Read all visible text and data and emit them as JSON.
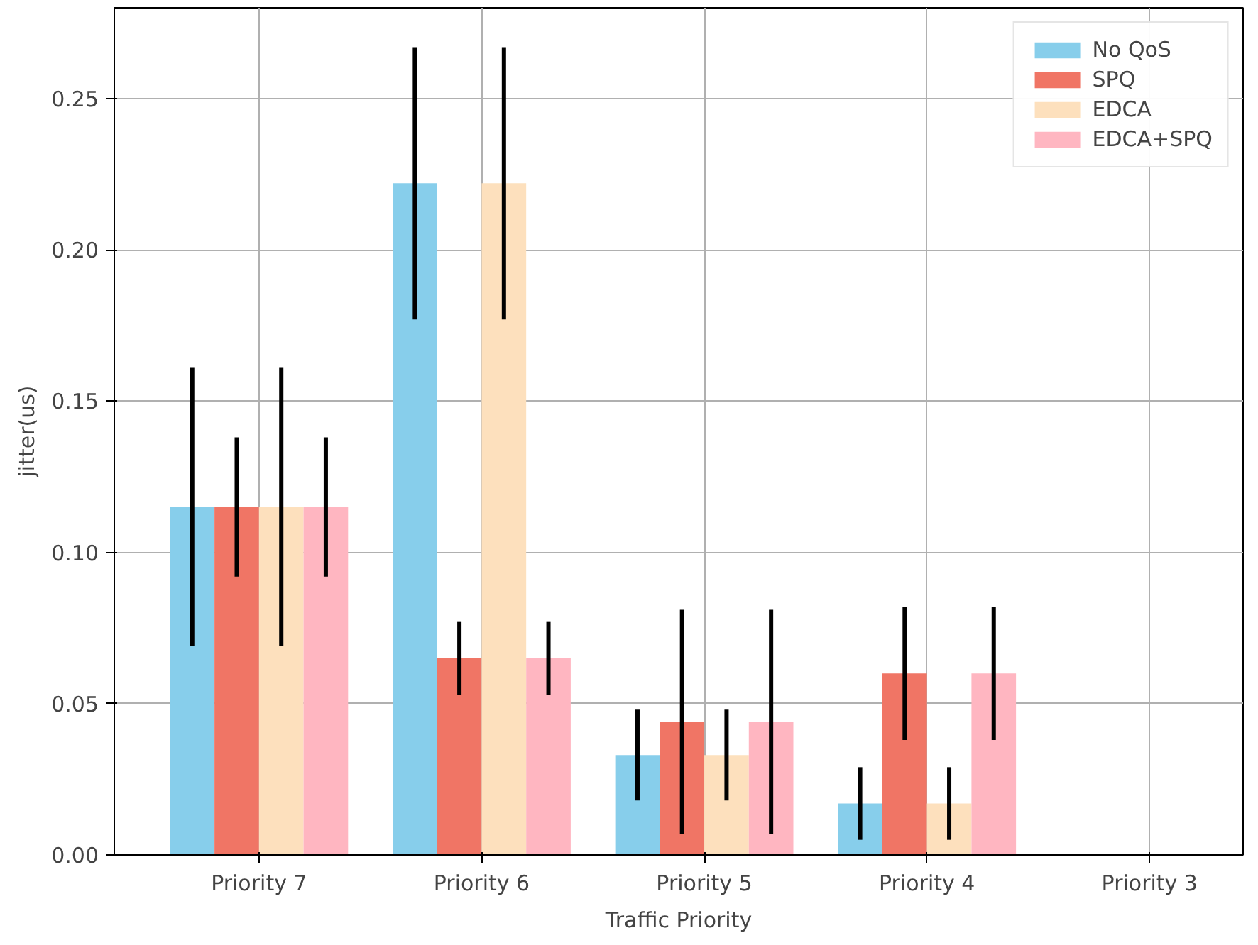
{
  "chart_data": {
    "type": "bar",
    "xlabel": "Traffic Priority",
    "ylabel": "jitter(us)",
    "categories": [
      "Priority 7",
      "Priority 6",
      "Priority 5",
      "Priority 4",
      "Priority 3"
    ],
    "series": [
      {
        "name": "No QoS",
        "color": "#87ceeb",
        "values": [
          0.115,
          0.222,
          0.033,
          0.017,
          null
        ],
        "errors": [
          0.046,
          0.045,
          0.015,
          0.012,
          null
        ]
      },
      {
        "name": "SPQ",
        "color": "#f07565",
        "values": [
          0.115,
          0.065,
          0.044,
          0.06,
          null
        ],
        "errors": [
          0.023,
          0.012,
          0.037,
          0.022,
          null
        ]
      },
      {
        "name": "EDCA",
        "color": "#fde0bd",
        "values": [
          0.115,
          0.222,
          0.033,
          0.017,
          null
        ],
        "errors": [
          0.046,
          0.045,
          0.015,
          0.012,
          null
        ]
      },
      {
        "name": "EDCA+SPQ",
        "color": "#ffb6c1",
        "values": [
          0.115,
          0.065,
          0.044,
          0.06,
          null
        ],
        "errors": [
          0.023,
          0.012,
          0.037,
          0.022,
          null
        ]
      }
    ],
    "ylim": [
      0,
      0.28
    ],
    "yticks": [
      {
        "value": 0,
        "label": "0.00"
      },
      {
        "value": 0.05,
        "label": "0.05"
      },
      {
        "value": 0.1,
        "label": "0.10"
      },
      {
        "value": 0.15,
        "label": "0.15"
      },
      {
        "value": 0.2,
        "label": "0.20"
      },
      {
        "value": 0.25,
        "label": "0.25"
      }
    ],
    "grid": true,
    "legend": "top right"
  }
}
